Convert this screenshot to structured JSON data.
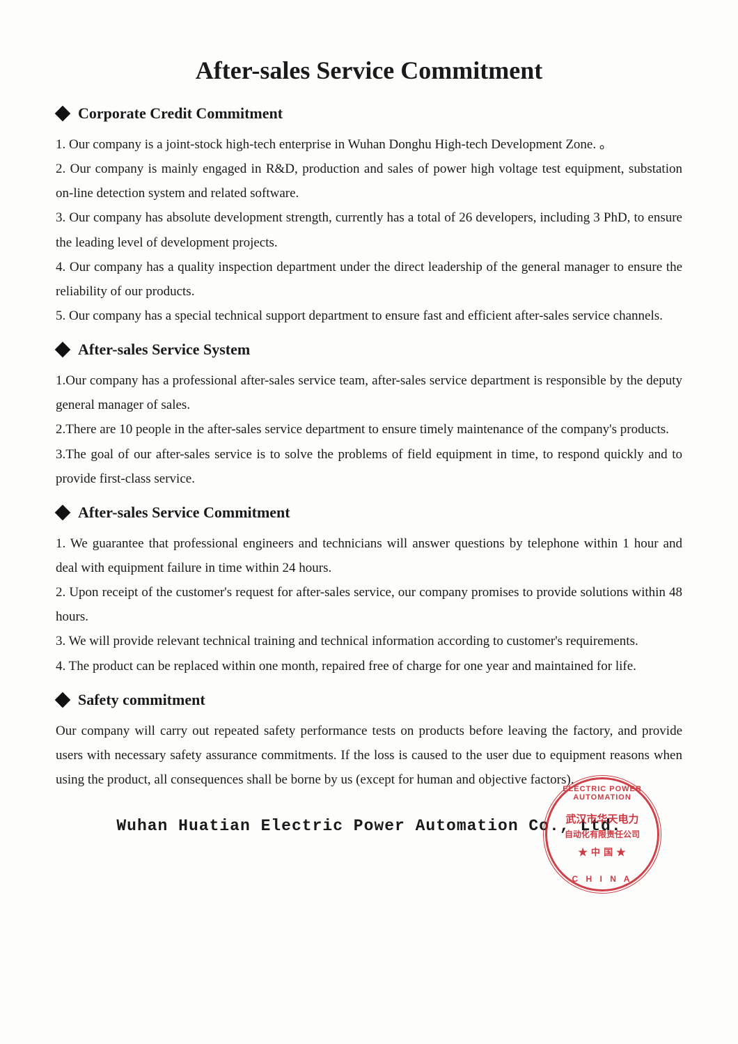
{
  "title": "After-sales Service Commitment",
  "sections": [
    {
      "heading": "Corporate Credit Commitment",
      "items": [
        "1. Our company is a joint-stock high-tech enterprise in Wuhan Donghu High-tech Development Zone. 。",
        "2. Our company is mainly engaged in R&D, production and sales of power high voltage test equipment, substation on-line detection system and related software.",
        "3. Our company has absolute development strength, currently has a total of 26 developers, including 3 PhD, to ensure the leading level of development projects.",
        "4. Our company has a quality inspection department under the direct leadership of the general manager to ensure the reliability of our products.",
        "5. Our company has a special technical support department to ensure fast and efficient after-sales service channels."
      ]
    },
    {
      "heading": "After-sales Service System",
      "items": [
        "1.Our company has a professional after-sales service team, after-sales service department is responsible by the deputy general manager of sales.",
        "2.There are 10 people in the after-sales service department to ensure timely maintenance of the company's products.",
        "3.The goal of our after-sales service is to solve the problems of field equipment in time, to respond quickly and to provide first-class service."
      ]
    },
    {
      "heading": "After-sales Service Commitment",
      "items": [
        "1. We guarantee that professional engineers and technicians will answer questions by telephone within 1 hour and deal with equipment failure in time within 24 hours.",
        "2. Upon receipt of the customer's request for after-sales service, our company promises to provide solutions within 48 hours.",
        "3. We will provide relevant technical training and technical information according to customer's requirements.",
        "4. The product can be replaced within one month, repaired free of charge for one year and maintained for life."
      ]
    },
    {
      "heading": "Safety commitment",
      "items": [
        "Our company will carry out repeated safety performance tests on products before leaving the factory, and provide users with necessary safety assurance commitments. If the loss is caused to the user due to equipment reasons when using the product, all consequences shall be borne by us (except for human and objective factors)."
      ]
    }
  ],
  "signature": "Wuhan Huatian Electric Power Automation Co., Ltd.",
  "stamp": {
    "arc_top": "ELECTRIC POWER AUTOMATION",
    "arc_bottom": "C H I N A",
    "inner_top": "武汉市华天电力",
    "inner_mid": "自动化有限责任公司",
    "inner_bot": "★ 中 国 ★",
    "color": "#c8202a"
  },
  "style": {
    "title_fontsize": 36,
    "heading_fontsize": 22,
    "body_fontsize": 19,
    "background": "#fdfdfb",
    "text_color": "#1a1a1a"
  }
}
